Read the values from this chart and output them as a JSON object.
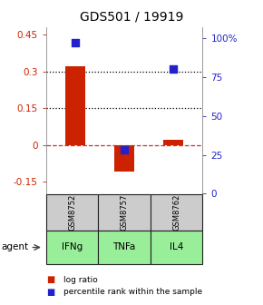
{
  "title": "GDS501 / 19919",
  "categories": [
    "IFNg",
    "TNFa",
    "IL4"
  ],
  "sample_ids": [
    "GSM8752",
    "GSM8757",
    "GSM8762"
  ],
  "log_ratios": [
    0.32,
    -0.11,
    0.02
  ],
  "percentile_ranks": [
    97,
    28,
    80
  ],
  "ylim_left": [
    -0.2,
    0.48
  ],
  "ylim_right": [
    0,
    107
  ],
  "yticks_left": [
    -0.15,
    0.0,
    0.15,
    0.3,
    0.45
  ],
  "yticks_right": [
    0,
    25,
    50,
    75,
    100
  ],
  "ytick_labels_right": [
    "0",
    "25",
    "50",
    "75",
    "100%"
  ],
  "bar_color": "#cc2200",
  "dot_color": "#2222cc",
  "cell_bg_gsm": "#cccccc",
  "cell_bg_agent": "#99ee99",
  "cell_border": "#222222",
  "title_fontsize": 10,
  "tick_fontsize": 7.5,
  "bar_width": 0.4,
  "dot_size": 28
}
